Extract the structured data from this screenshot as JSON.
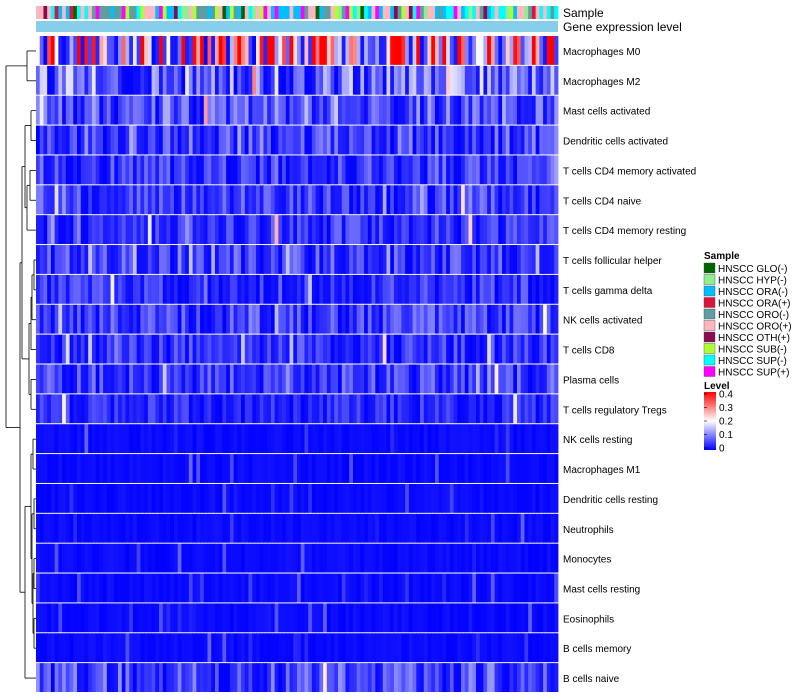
{
  "chart_data": {
    "type": "heatmap",
    "annotation_labels": {
      "sample": "Sample",
      "gene_expression": "Gene expression level"
    },
    "rows": [
      {
        "label": "Macrophages M0",
        "mean": 0.32
      },
      {
        "label": "Macrophages M2",
        "mean": 0.11
      },
      {
        "label": "Mast cells activated",
        "mean": 0.08
      },
      {
        "label": "Dendritic cells activated",
        "mean": 0.07
      },
      {
        "label": "T cells CD4 memory activated",
        "mean": 0.06
      },
      {
        "label": "T cells CD4 naive",
        "mean": 0.06
      },
      {
        "label": "T cells CD4 memory resting",
        "mean": 0.05
      },
      {
        "label": "T cells follicular helper",
        "mean": 0.06
      },
      {
        "label": "T cells gamma delta",
        "mean": 0.05
      },
      {
        "label": "NK cells activated",
        "mean": 0.06
      },
      {
        "label": "T cells CD8",
        "mean": 0.05
      },
      {
        "label": "Plasma cells",
        "mean": 0.06
      },
      {
        "label": "T cells regulatory  Tregs",
        "mean": 0.04
      },
      {
        "label": "NK cells resting",
        "mean": 0.02
      },
      {
        "label": "Macrophages M1",
        "mean": 0.02
      },
      {
        "label": "Dendritic cells resting",
        "mean": 0.01
      },
      {
        "label": "Neutrophils",
        "mean": 0.01
      },
      {
        "label": "Monocytes",
        "mean": 0.01
      },
      {
        "label": "Mast cells resting",
        "mean": 0.01
      },
      {
        "label": "Eosinophils",
        "mean": 0.0
      },
      {
        "label": "B cells memory",
        "mean": 0.0
      },
      {
        "label": "B cells naive",
        "mean": 0.07
      }
    ],
    "n_samples": 140,
    "value_range": [
      0,
      0.4
    ],
    "legend": {
      "sample_title": "Sample",
      "groups": [
        {
          "label": "HNSCC GLO(-)",
          "color": "#006400"
        },
        {
          "label": "HNSCC HYP(-)",
          "color": "#90ee90"
        },
        {
          "label": "HNSCC ORA(-)",
          "color": "#00bfff"
        },
        {
          "label": "HNSCC ORA(+)",
          "color": "#dc143c"
        },
        {
          "label": "HNSCC ORO(-)",
          "color": "#5f9ea0"
        },
        {
          "label": "HNSCC ORO(+)",
          "color": "#ffb6c1"
        },
        {
          "label": "HNSCC OTH(+)",
          "color": "#8b0a50"
        },
        {
          "label": "HNSCC SUB(-)",
          "color": "#adff2f"
        },
        {
          "label": "HNSCC SUP(-)",
          "color": "#00ffff"
        },
        {
          "label": "HNSCC SUP(+)",
          "color": "#ff00ff"
        }
      ],
      "level_title": "Level",
      "level_ticks": [
        {
          "label": "0.4",
          "value": 0.4
        },
        {
          "label": "0.3",
          "value": 0.3
        },
        {
          "label": "0.2",
          "value": 0.2
        },
        {
          "label": "0.1",
          "value": 0.1
        },
        {
          "label": "0",
          "value": 0
        }
      ],
      "gradient": {
        "low": "#0000ff",
        "mid": "#ffffff",
        "high": "#ff0000"
      }
    },
    "annotation_colors": {
      "gene_expression_bar": "#87ceeb"
    }
  }
}
